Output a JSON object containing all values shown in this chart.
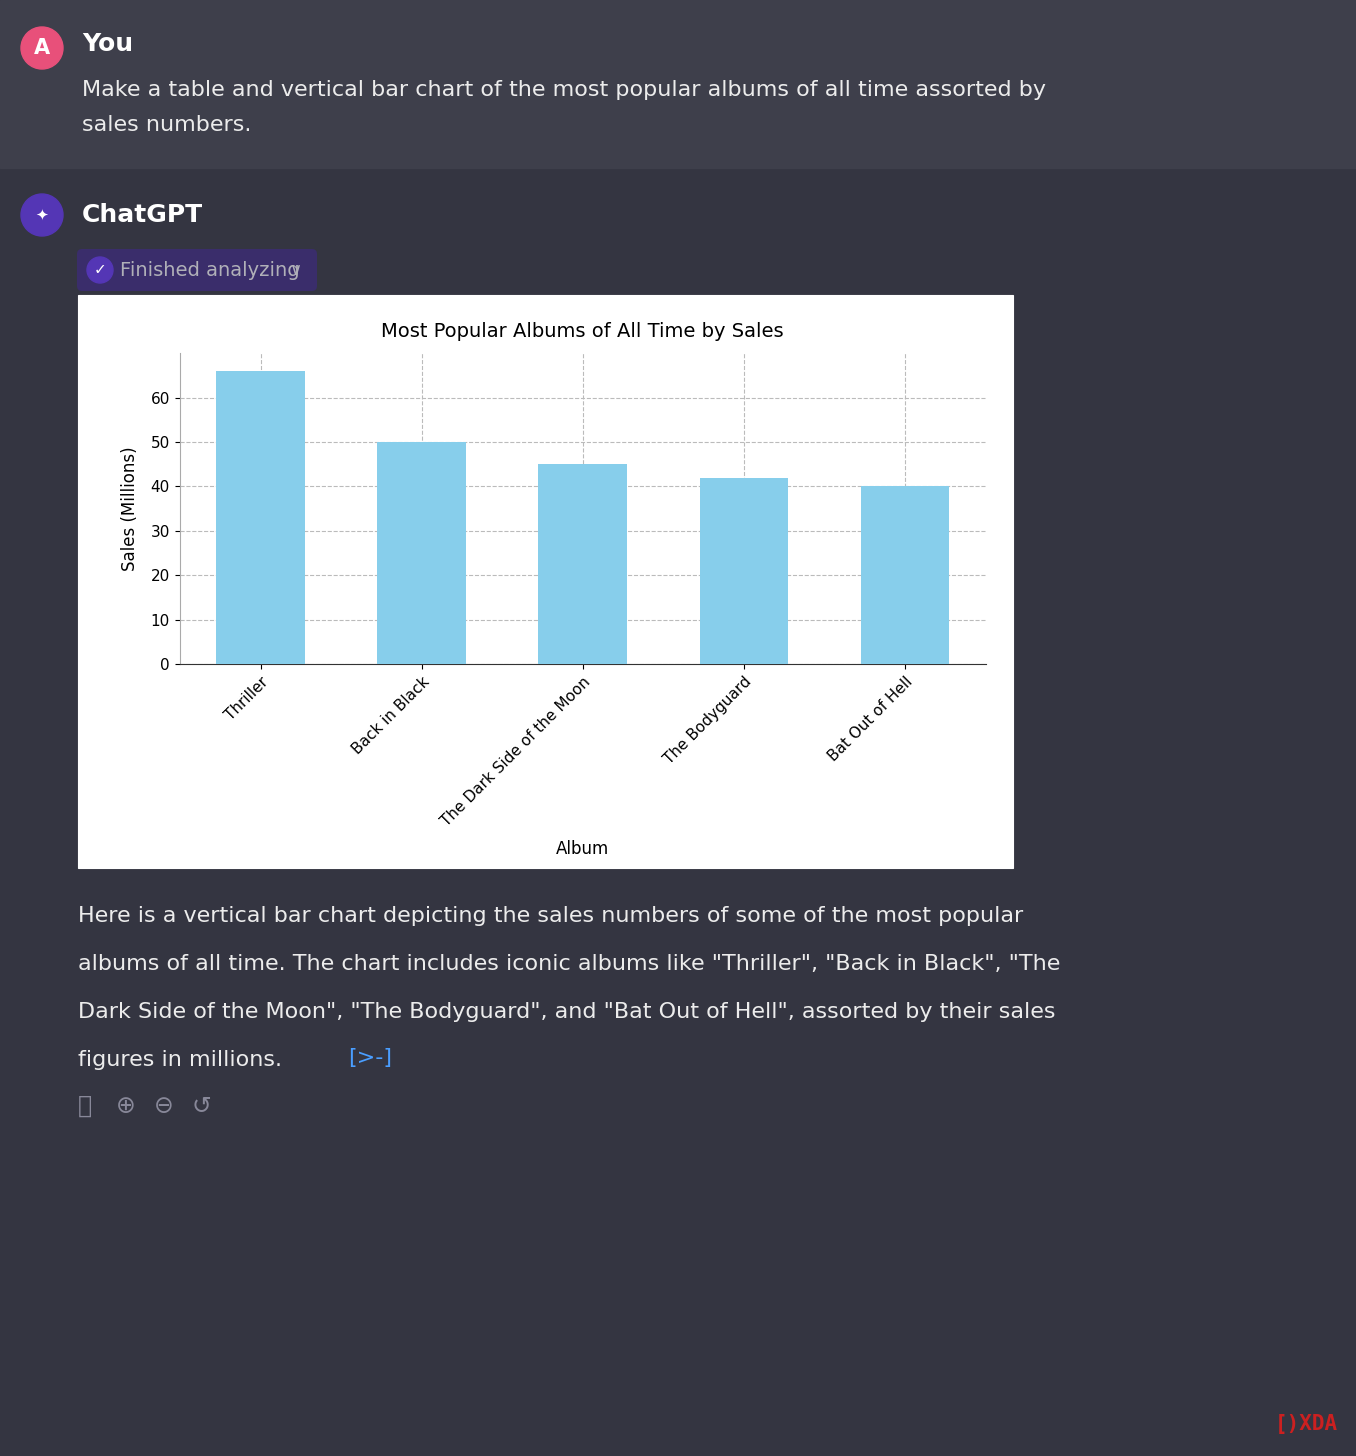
{
  "albums": [
    "Thriller",
    "Back in Black",
    "The Dark Side of the Moon",
    "The Bodyguard",
    "Bat Out of Hell"
  ],
  "sales": [
    66,
    50,
    45,
    42,
    40
  ],
  "bar_color": "#87CEEB",
  "title": "Most Popular Albums of All Time by Sales",
  "xlabel": "Album",
  "ylabel": "Sales (Millions)",
  "ylim": [
    0,
    70
  ],
  "yticks": [
    0,
    10,
    20,
    30,
    40,
    50,
    60
  ],
  "bg_dark": "#343541",
  "bg_you": "#3e3f4b",
  "bg_chart": "#ffffff",
  "text_light": "#ececec",
  "text_muted": "#b0b0b8",
  "user_label": "You",
  "user_message_line1": "Make a table and vertical bar chart of the most popular albums of all time assorted by",
  "user_message_line2": "sales numbers.",
  "chatgpt_label": "ChatGPT",
  "finished_label": "Finished analyzing",
  "response_line1": "Here is a vertical bar chart depicting the sales numbers of some of the most popular",
  "response_line2": "albums of all time. The chart includes iconic albums like \"Thriller\", \"Back in Black\", \"The",
  "response_line3": "Dark Side of the Moon\", \"The Bodyguard\", and \"Bat Out of Hell\", assorted by their sales",
  "response_line4": "figures in millions.",
  "link_text": "[>-]",
  "avatar_color_user": "#e8507a",
  "avatar_color_chatgpt": "#5436b5",
  "badge_bg": "#3a2d6b",
  "badge_check_bg": "#5436b5",
  "title_fontsize": 14,
  "axis_label_fontsize": 12,
  "tick_fontsize": 11,
  "ui_text_large": 18,
  "ui_text_medium": 16,
  "ui_text_small": 14,
  "xda_color": "#cc2020"
}
